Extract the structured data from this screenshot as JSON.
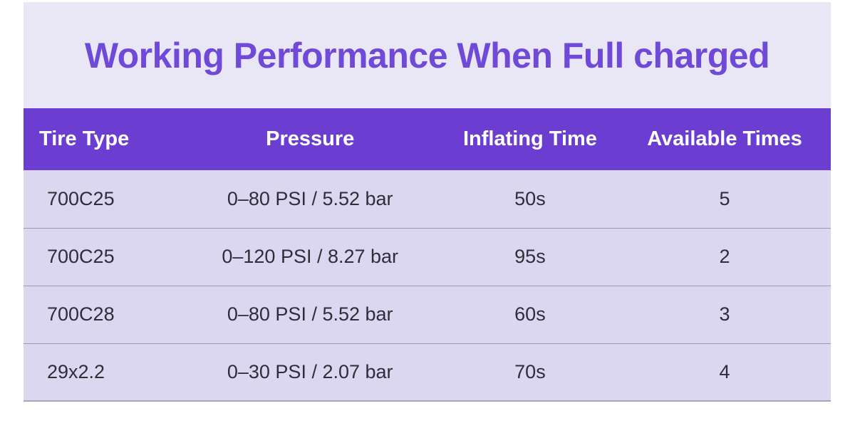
{
  "title": "Working Performance When Full charged",
  "colors": {
    "panel_bg": "#e9e6f6",
    "title_text": "#6f4ad9",
    "header_bg": "#6b3ed1",
    "header_text": "#ffffff",
    "row_bg": "#dcd7f1",
    "row_text": "#2f2d38",
    "divider": "#9e9aac",
    "bottom_edge": "#a9a5b9"
  },
  "table": {
    "columns": [
      "Tire Type",
      "Pressure",
      "Inflating Time",
      "Available Times"
    ],
    "rows": [
      [
        "700C25",
        "0–80 PSI / 5.52 bar",
        "50s",
        "5"
      ],
      [
        "700C25",
        "0–120 PSI / 8.27 bar",
        "95s",
        "2"
      ],
      [
        "700C28",
        "0–80 PSI / 5.52 bar",
        "60s",
        "3"
      ],
      [
        "29x2.2",
        "0–30 PSI / 2.07 bar",
        "70s",
        "4"
      ]
    ]
  }
}
